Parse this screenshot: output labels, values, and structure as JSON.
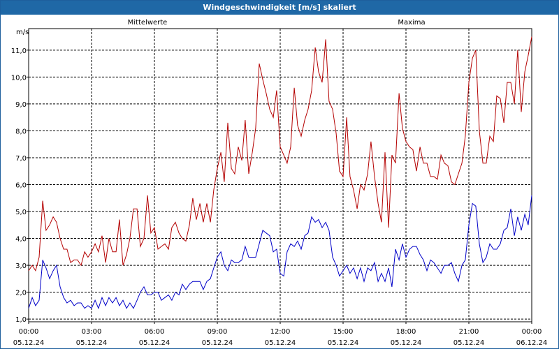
{
  "window": {
    "title": "Windgeschwindigkeit [m/s] skaliert"
  },
  "colors": {
    "mean": "#0000c8",
    "max": "#b40000",
    "grid": "#000000",
    "titlebar": "#1f68a6"
  },
  "chart_data": {
    "type": "line",
    "title": "Windgeschwindigkeit [m/s] skaliert",
    "ylabel": "m/s",
    "xlabel": "",
    "ylim": [
      0.9,
      11.8
    ],
    "yticks": [
      "1,0",
      "2,0",
      "3,0",
      "4,0",
      "5,0",
      "6,0",
      "7,0",
      "8,0",
      "9,0",
      "10,0",
      "11,0"
    ],
    "ytick_values": [
      1,
      2,
      3,
      4,
      5,
      6,
      7,
      8,
      9,
      10,
      11
    ],
    "xlim": [
      0,
      24
    ],
    "xticks": [
      {
        "time": "00:00",
        "date": "05.12.24"
      },
      {
        "time": "03:00",
        "date": "05.12.24"
      },
      {
        "time": "06:00",
        "date": "05.12.24"
      },
      {
        "time": "09:00",
        "date": "05.12.24"
      },
      {
        "time": "12:00",
        "date": "05.12.24"
      },
      {
        "time": "15:00",
        "date": "05.12.24"
      },
      {
        "time": "18:00",
        "date": "05.12.24"
      },
      {
        "time": "21:00",
        "date": "05.12.24"
      },
      {
        "time": "00:00",
        "date": "06.12.24"
      }
    ],
    "xtick_hours": [
      0,
      3,
      6,
      9,
      12,
      15,
      18,
      21,
      24
    ],
    "grid": true,
    "legend": "top",
    "series": [
      {
        "name": "Mittelwerte",
        "x": [
          0.0,
          0.17,
          0.33,
          0.5,
          0.67,
          0.83,
          1.0,
          1.17,
          1.33,
          1.5,
          1.67,
          1.83,
          2.0,
          2.17,
          2.33,
          2.5,
          2.67,
          2.83,
          3.0,
          3.17,
          3.33,
          3.5,
          3.67,
          3.83,
          4.0,
          4.17,
          4.33,
          4.5,
          4.67,
          4.83,
          5.0,
          5.17,
          5.33,
          5.5,
          5.67,
          5.83,
          6.0,
          6.17,
          6.33,
          6.5,
          6.67,
          6.83,
          7.0,
          7.17,
          7.33,
          7.5,
          7.67,
          7.83,
          8.0,
          8.17,
          8.33,
          8.5,
          8.67,
          8.83,
          9.0,
          9.17,
          9.33,
          9.5,
          9.67,
          9.83,
          10.0,
          10.17,
          10.33,
          10.5,
          10.67,
          10.83,
          11.0,
          11.17,
          11.33,
          11.5,
          11.67,
          11.83,
          12.0,
          12.17,
          12.33,
          12.5,
          12.67,
          12.83,
          13.0,
          13.17,
          13.33,
          13.5,
          13.67,
          13.83,
          14.0,
          14.17,
          14.33,
          14.5,
          14.67,
          14.83,
          15.0,
          15.17,
          15.33,
          15.5,
          15.67,
          15.83,
          16.0,
          16.17,
          16.33,
          16.5,
          16.67,
          16.83,
          17.0,
          17.17,
          17.33,
          17.5,
          17.67,
          17.83,
          18.0,
          18.17,
          18.33,
          18.5,
          18.67,
          18.83,
          19.0,
          19.17,
          19.33,
          19.5,
          19.67,
          19.83,
          20.0,
          20.17,
          20.33,
          20.5,
          20.67,
          20.83,
          21.0,
          21.17,
          21.33,
          21.5,
          21.67,
          21.83,
          22.0,
          22.17,
          22.33,
          22.5,
          22.67,
          22.83,
          23.0,
          23.17,
          23.33,
          23.5,
          23.67,
          23.83,
          24.0
        ],
        "values": [
          1.4,
          1.8,
          1.5,
          1.7,
          3.2,
          2.9,
          2.5,
          2.8,
          3.0,
          2.2,
          1.8,
          1.6,
          1.7,
          1.5,
          1.6,
          1.6,
          1.4,
          1.5,
          1.4,
          1.7,
          1.4,
          1.8,
          1.5,
          1.8,
          1.6,
          1.8,
          1.5,
          1.7,
          1.4,
          1.6,
          1.4,
          1.7,
          2.0,
          2.2,
          1.9,
          1.9,
          2.0,
          2.0,
          1.7,
          1.8,
          1.9,
          1.7,
          2.0,
          1.9,
          2.3,
          2.1,
          2.3,
          2.4,
          2.4,
          2.4,
          2.1,
          2.4,
          2.5,
          2.9,
          3.3,
          3.5,
          3.0,
          2.8,
          3.2,
          3.1,
          3.1,
          3.2,
          3.7,
          3.3,
          3.3,
          3.3,
          3.8,
          4.3,
          4.2,
          4.1,
          3.5,
          3.6,
          2.7,
          2.6,
          3.5,
          3.8,
          3.7,
          3.9,
          3.6,
          4.1,
          4.2,
          4.8,
          4.6,
          4.7,
          4.4,
          4.6,
          4.3,
          3.3,
          3.0,
          2.6,
          2.8,
          3.0,
          2.7,
          2.9,
          2.5,
          2.9,
          2.4,
          2.9,
          2.8,
          3.1,
          2.4,
          2.7,
          2.4,
          2.9,
          2.2,
          3.6,
          3.2,
          3.8,
          3.3,
          3.6,
          3.7,
          3.7,
          3.4,
          3.2,
          2.8,
          3.2,
          3.1,
          2.9,
          2.7,
          3.0,
          3.0,
          3.1,
          2.7,
          2.4,
          3.0,
          3.2,
          4.5,
          5.3,
          5.2,
          3.8,
          3.1,
          3.3,
          3.8,
          3.6,
          3.6,
          3.8,
          4.3,
          4.4,
          5.1,
          4.1,
          4.8,
          4.3,
          4.9,
          4.5,
          5.6
        ]
      },
      {
        "name": "Maxima",
        "x": [
          0.0,
          0.17,
          0.33,
          0.5,
          0.67,
          0.83,
          1.0,
          1.17,
          1.33,
          1.5,
          1.67,
          1.83,
          2.0,
          2.17,
          2.33,
          2.5,
          2.67,
          2.83,
          3.0,
          3.17,
          3.33,
          3.5,
          3.67,
          3.83,
          4.0,
          4.17,
          4.33,
          4.5,
          4.67,
          4.83,
          5.0,
          5.17,
          5.33,
          5.5,
          5.67,
          5.83,
          6.0,
          6.17,
          6.33,
          6.5,
          6.67,
          6.83,
          7.0,
          7.17,
          7.33,
          7.5,
          7.67,
          7.83,
          8.0,
          8.17,
          8.33,
          8.5,
          8.67,
          8.83,
          9.0,
          9.17,
          9.33,
          9.5,
          9.67,
          9.83,
          10.0,
          10.17,
          10.33,
          10.5,
          10.67,
          10.83,
          11.0,
          11.17,
          11.33,
          11.5,
          11.67,
          11.83,
          12.0,
          12.17,
          12.33,
          12.5,
          12.67,
          12.83,
          13.0,
          13.17,
          13.33,
          13.5,
          13.67,
          13.83,
          14.0,
          14.17,
          14.33,
          14.5,
          14.67,
          14.83,
          15.0,
          15.17,
          15.33,
          15.5,
          15.67,
          15.83,
          16.0,
          16.17,
          16.33,
          16.5,
          16.67,
          16.83,
          17.0,
          17.17,
          17.33,
          17.5,
          17.67,
          17.83,
          18.0,
          18.17,
          18.33,
          18.5,
          18.67,
          18.83,
          19.0,
          19.17,
          19.33,
          19.5,
          19.67,
          19.83,
          20.0,
          20.17,
          20.33,
          20.5,
          20.67,
          20.83,
          21.0,
          21.17,
          21.33,
          21.5,
          21.67,
          21.83,
          22.0,
          22.17,
          22.33,
          22.5,
          22.67,
          22.83,
          23.0,
          23.17,
          23.33,
          23.5,
          23.67,
          23.83,
          24.0
        ],
        "values": [
          2.8,
          3.0,
          2.8,
          3.3,
          5.4,
          4.3,
          4.5,
          4.8,
          4.6,
          4.0,
          3.6,
          3.6,
          3.1,
          3.2,
          3.2,
          3.0,
          3.5,
          3.3,
          3.5,
          3.8,
          3.5,
          4.1,
          3.1,
          4.0,
          3.5,
          3.5,
          4.7,
          3.0,
          3.4,
          4.0,
          5.1,
          5.1,
          3.7,
          4.0,
          5.6,
          4.2,
          4.4,
          3.6,
          3.7,
          3.8,
          3.6,
          4.4,
          4.6,
          4.2,
          4.0,
          3.9,
          4.5,
          5.5,
          4.7,
          5.3,
          4.6,
          5.3,
          4.6,
          5.8,
          6.6,
          7.2,
          6.1,
          8.3,
          6.6,
          6.4,
          7.4,
          6.9,
          8.4,
          6.4,
          7.2,
          8.1,
          10.5,
          9.9,
          9.4,
          8.8,
          8.5,
          9.5,
          7.4,
          7.1,
          6.8,
          7.4,
          9.6,
          8.2,
          7.8,
          8.4,
          8.8,
          9.5,
          11.1,
          10.2,
          9.8,
          11.4,
          9.1,
          8.8,
          7.9,
          6.5,
          6.3,
          8.5,
          6.3,
          5.8,
          5.1,
          6.0,
          5.8,
          6.4,
          7.6,
          6.3,
          5.3,
          4.6,
          7.2,
          4.4,
          7.1,
          6.8,
          9.4,
          8.1,
          7.6,
          7.4,
          7.3,
          6.5,
          7.4,
          6.8,
          6.8,
          6.3,
          6.3,
          6.2,
          7.1,
          6.8,
          6.7,
          6.1,
          6.0,
          6.4,
          6.8,
          7.8,
          9.8,
          10.7,
          11.0,
          8.0,
          6.8,
          6.8,
          7.8,
          7.6,
          9.3,
          9.2,
          8.3,
          9.8,
          9.8,
          9.0,
          11.0,
          8.7,
          10.2,
          10.8,
          11.5
        ]
      }
    ]
  }
}
